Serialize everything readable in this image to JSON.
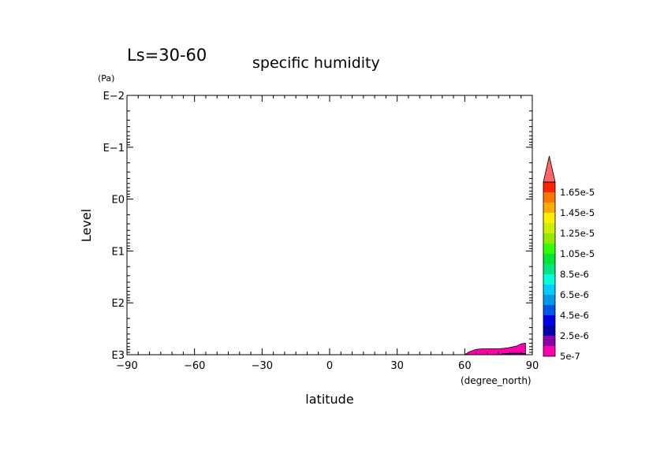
{
  "chart_data": {
    "type": "contour",
    "title": "specific humidity",
    "subtitle": "Ls=30-60",
    "xlabel": "latitude",
    "xunit": "(degree_north)",
    "ylabel": "Level",
    "yunit": "(Pa)",
    "xlim": [
      -90,
      90
    ],
    "x_ticks": [
      -90,
      -60,
      -30,
      0,
      30,
      60,
      90
    ],
    "x_tick_labels": [
      "−90",
      "−60",
      "−30",
      "0",
      "30",
      "60",
      "90"
    ],
    "y_scale": "log",
    "y_inverted": true,
    "ylim": [
      0.01,
      1000
    ],
    "y_ticks": [
      0.01,
      0.1,
      1,
      10,
      100,
      1000
    ],
    "y_tick_labels": [
      "E−2",
      "E−1",
      "E0",
      "E1",
      "E2",
      "E3"
    ],
    "colorbar": {
      "levels": [
        5e-07,
        1.5e-06,
        2.5e-06,
        3.5e-06,
        4.5e-06,
        5.5e-06,
        6.5e-06,
        7.5e-06,
        8.5e-06,
        9.5e-06,
        1.05e-05,
        1.15e-05,
        1.25e-05,
        1.35e-05,
        1.45e-05,
        1.55e-05,
        1.65e-05
      ],
      "labels": [
        "5e-7",
        "2.5e-6",
        "4.5e-6",
        "6.5e-6",
        "8.5e-6",
        "1.05e-5",
        "1.25e-5",
        "1.45e-5",
        "1.65e-5"
      ],
      "label_values": [
        5e-07,
        2.5e-06,
        4.5e-06,
        6.5e-06,
        8.5e-06,
        1.05e-05,
        1.25e-05,
        1.45e-05,
        1.65e-05
      ],
      "colors": [
        "#ff00aa",
        "#8800aa",
        "#0000aa",
        "#0000e6",
        "#0055e6",
        "#0099e6",
        "#00ccff",
        "#00ffdd",
        "#00e680",
        "#00e633",
        "#33ff00",
        "#99e600",
        "#ccee00",
        "#ffee00",
        "#ffaa00",
        "#ff7700",
        "#ff2200"
      ],
      "extend_color": "#ff6666"
    },
    "regions": [
      {
        "level_index": 0,
        "outline": [
          [
            60,
            1000
          ],
          [
            62,
            880
          ],
          [
            65,
            790
          ],
          [
            68,
            770
          ],
          [
            75,
            770
          ],
          [
            79,
            740
          ],
          [
            83,
            680
          ],
          [
            85,
            620
          ],
          [
            87,
            600
          ],
          [
            87,
            1000
          ]
        ]
      },
      {
        "level_index": 1,
        "outline": [
          [
            75,
            1000
          ],
          [
            77,
            960
          ],
          [
            81,
            940
          ],
          [
            85,
            940
          ],
          [
            87,
            950
          ],
          [
            87,
            1000
          ]
        ]
      }
    ]
  }
}
